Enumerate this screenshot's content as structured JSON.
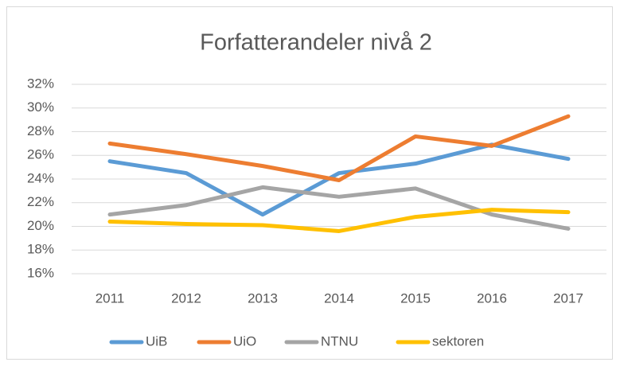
{
  "chart_data": {
    "type": "line",
    "title": "Forfatterandeler nivå 2",
    "categories": [
      "2011",
      "2012",
      "2013",
      "2014",
      "2015",
      "2016",
      "2017"
    ],
    "series": [
      {
        "name": "UiB",
        "color": "#5b9bd5",
        "values": [
          25.5,
          24.5,
          21.0,
          24.5,
          25.3,
          26.9,
          25.7
        ]
      },
      {
        "name": "UiO",
        "color": "#ed7d31",
        "values": [
          27.0,
          26.1,
          25.1,
          23.9,
          27.6,
          26.8,
          29.3
        ]
      },
      {
        "name": "NTNU",
        "color": "#a5a5a5",
        "values": [
          21.0,
          21.8,
          23.3,
          22.5,
          23.2,
          21.0,
          19.8
        ]
      },
      {
        "name": "sektoren",
        "color": "#ffc000",
        "values": [
          20.4,
          20.2,
          20.1,
          19.6,
          20.8,
          21.4,
          21.2
        ]
      }
    ],
    "ylim": [
      16,
      32
    ],
    "yticks": [
      {
        "value": 16,
        "label": "16%"
      },
      {
        "value": 18,
        "label": "18%"
      },
      {
        "value": 20,
        "label": "20%"
      },
      {
        "value": 22,
        "label": "22%"
      },
      {
        "value": 24,
        "label": "24%"
      },
      {
        "value": 26,
        "label": "26%"
      },
      {
        "value": 28,
        "label": "28%"
      },
      {
        "value": 30,
        "label": "30%"
      },
      {
        "value": 32,
        "label": "32%"
      }
    ],
    "grid": true,
    "legend": "bottom"
  }
}
